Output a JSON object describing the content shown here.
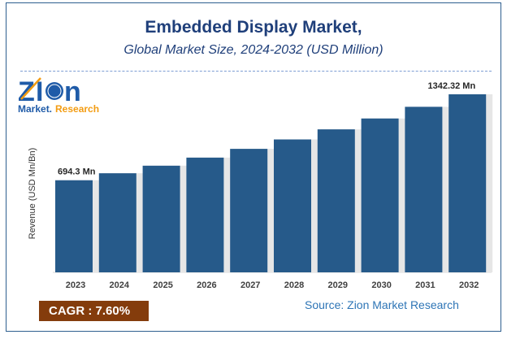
{
  "chart_data": {
    "type": "bar",
    "title": "Embedded Display Market,",
    "subtitle": "Global Market Size, 2024-2032 (USD Million)",
    "ylabel": "Revenue (USD Mn/Bn)",
    "xlabel": "",
    "categories": [
      "2023",
      "2024",
      "2025",
      "2026",
      "2027",
      "2028",
      "2029",
      "2030",
      "2031",
      "2032"
    ],
    "values": [
      694.3,
      747,
      804,
      865,
      931,
      1002,
      1078,
      1160,
      1248,
      1342.32
    ],
    "data_labels": {
      "first": "694.3 Mn",
      "last": "1342.32 Mn"
    },
    "ylim": [
      0,
      1400
    ],
    "grid": false,
    "bar_color": "#265a8a"
  },
  "logo": {
    "text": "Zion",
    "subtext": "Market.Research"
  },
  "cagr": "CAGR :  7.60%",
  "source": "Source: Zion Market Research"
}
